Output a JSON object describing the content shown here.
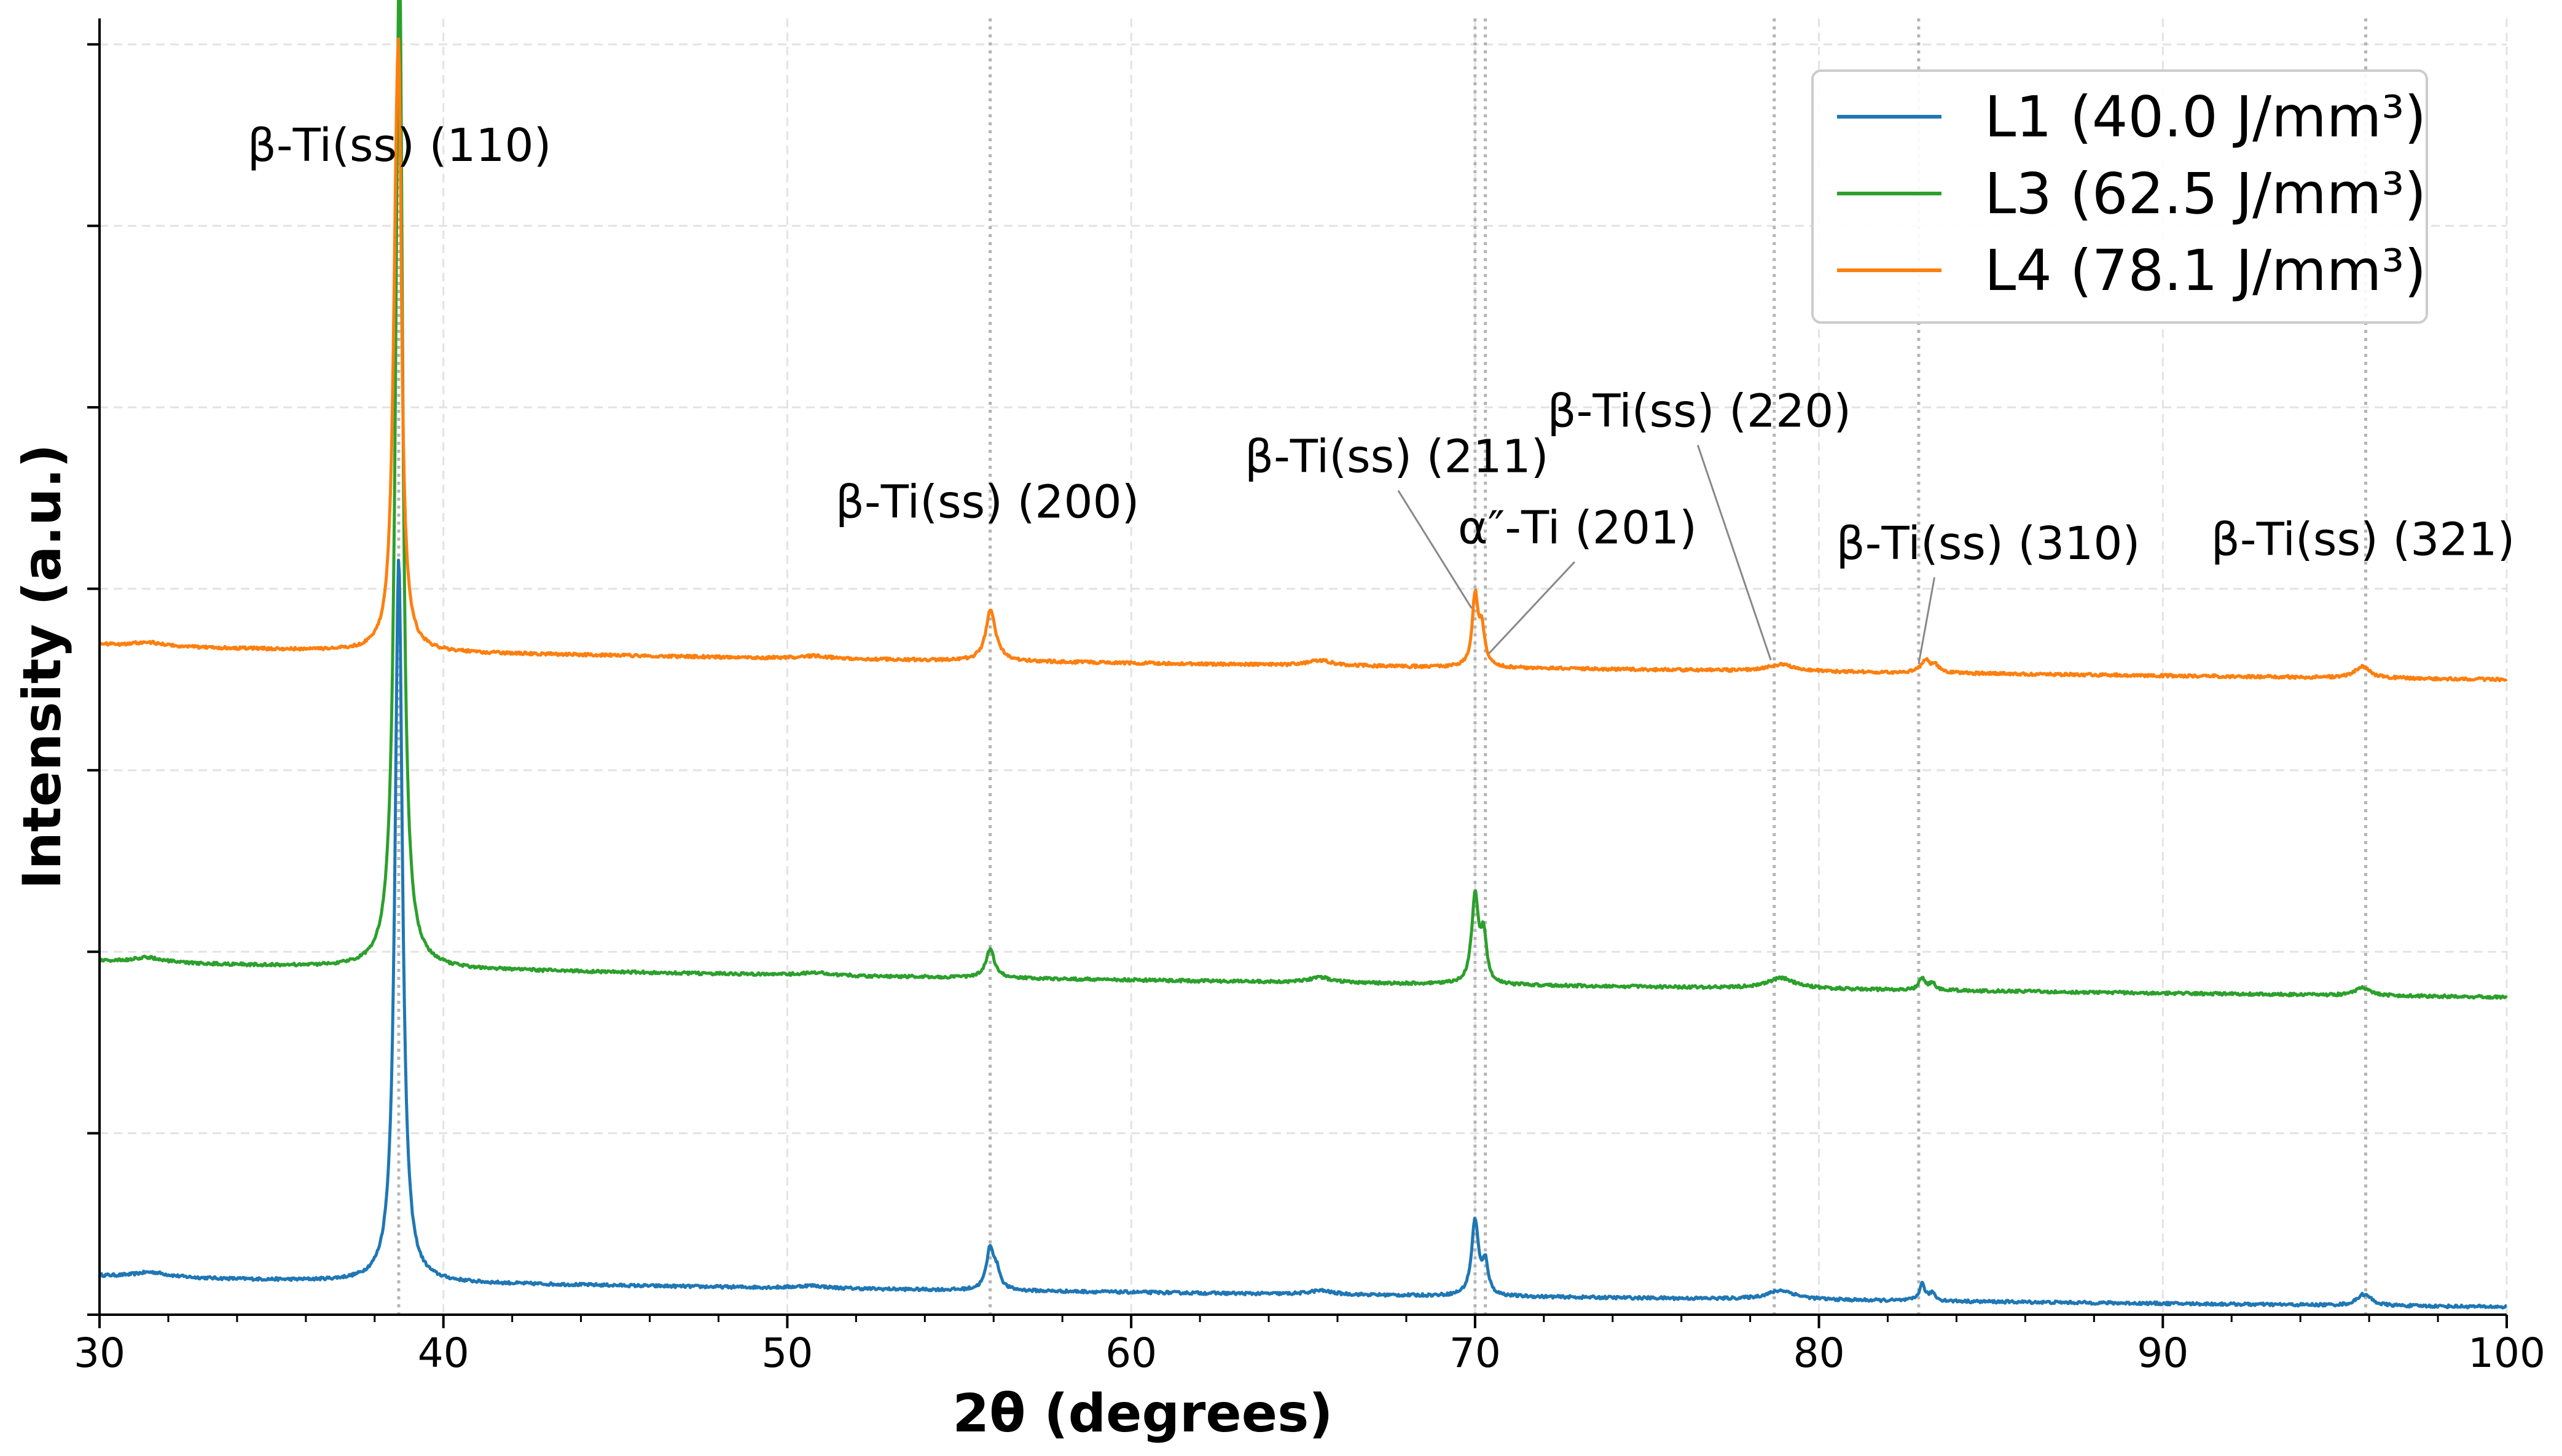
{
  "chart_data": {
    "type": "line",
    "title": "",
    "xlabel": "2θ (degrees)",
    "ylabel": "Intensity (a.u.)",
    "xlim": [
      30,
      100
    ],
    "ylim": [
      0,
      1
    ],
    "x_ticks": [
      "30",
      "40",
      "50",
      "60",
      "70",
      "80",
      "90",
      "100"
    ],
    "y_tick_values": [
      0,
      0.14,
      0.28,
      0.42,
      0.56,
      0.7,
      0.84,
      0.98
    ],
    "grid": true,
    "y_tick_labels_shown": false,
    "legend": {
      "placement": "top-right",
      "entries": [
        {
          "label": "L1 (40.0 J/mm³)",
          "color": "#1f77b4"
        },
        {
          "label": "L3 (62.5 J/mm³)",
          "color": "#2ca02c"
        },
        {
          "label": "L4 (78.1 J/mm³)",
          "color": "#ff7f0e"
        }
      ]
    },
    "reference_lines": [
      38.7,
      55.9,
      70.0,
      70.3,
      78.7,
      82.9,
      95.9
    ],
    "series": [
      {
        "name": "L1 (40.0 J/mm³)",
        "color": "#1f77b4",
        "offset": 0.0,
        "baseline_start": 0.03,
        "baseline_end": 0.006,
        "peaks": [
          [
            38.7,
            0.56,
            0.13
          ],
          [
            55.9,
            0.032,
            0.13
          ],
          [
            56.1,
            0.012,
            0.12
          ],
          [
            70.0,
            0.058,
            0.12
          ],
          [
            70.3,
            0.024,
            0.1
          ],
          [
            78.9,
            0.007,
            0.5
          ],
          [
            65.5,
            0.003,
            0.4
          ],
          [
            83.0,
            0.013,
            0.1
          ],
          [
            83.3,
            0.006,
            0.1
          ],
          [
            95.8,
            0.007,
            0.2
          ],
          [
            96.0,
            0.003,
            0.2
          ],
          [
            31.5,
            0.004,
            0.6
          ],
          [
            50.7,
            0.002,
            0.5
          ]
        ]
      },
      {
        "name": "L3 (62.5 J/mm³)",
        "color": "#2ca02c",
        "offset": 0.245,
        "baseline_start": 0.028,
        "baseline_end": 0.0,
        "peaks": [
          [
            38.7,
            0.62,
            0.13
          ],
          [
            38.75,
            0.2,
            0.08
          ],
          [
            55.9,
            0.022,
            0.15
          ],
          [
            70.0,
            0.067,
            0.12
          ],
          [
            70.25,
            0.035,
            0.1
          ],
          [
            78.9,
            0.008,
            0.5
          ],
          [
            65.5,
            0.004,
            0.4
          ],
          [
            83.0,
            0.01,
            0.1
          ],
          [
            83.3,
            0.006,
            0.1
          ],
          [
            95.8,
            0.006,
            0.25
          ],
          [
            31.4,
            0.004,
            0.5
          ],
          [
            50.8,
            0.002,
            0.5
          ]
        ]
      },
      {
        "name": "L4 (78.1 J/mm³)",
        "color": "#ff7f0e",
        "offset": 0.49,
        "baseline_start": 0.027,
        "baseline_end": 0.0,
        "peaks": [
          [
            38.65,
            0.35,
            0.13
          ],
          [
            38.72,
            0.18,
            0.07
          ],
          [
            55.9,
            0.033,
            0.15
          ],
          [
            56.0,
            0.008,
            0.25
          ],
          [
            70.0,
            0.054,
            0.1
          ],
          [
            70.2,
            0.028,
            0.1
          ],
          [
            78.9,
            0.005,
            0.5
          ],
          [
            65.5,
            0.004,
            0.4
          ],
          [
            83.1,
            0.01,
            0.15
          ],
          [
            83.4,
            0.005,
            0.15
          ],
          [
            95.8,
            0.009,
            0.25
          ],
          [
            31.4,
            0.003,
            0.6
          ],
          [
            50.8,
            0.002,
            0.5
          ]
        ]
      }
    ],
    "annotations": [
      {
        "text": "β-Ti(ss) (110)",
        "x": 34.3,
        "y": 0.89,
        "anchor": "start"
      },
      {
        "text": "β-Ti(ss) (200)",
        "x": 51.4,
        "y": 0.615,
        "anchor": "start"
      },
      {
        "text": "β-Ti(ss) (211)",
        "x": 63.3,
        "y": 0.65,
        "anchor": "start",
        "leader_to": [
          69.9,
          0.545
        ]
      },
      {
        "text": "α″-Ti (201)",
        "x": 69.5,
        "y": 0.595,
        "anchor": "start",
        "leader_to": [
          70.4,
          0.51
        ]
      },
      {
        "text": "β-Ti(ss) (220)",
        "x": 72.1,
        "y": 0.685,
        "anchor": "start",
        "leader_to": [
          78.6,
          0.505
        ]
      },
      {
        "text": "β-Ti(ss) (310)",
        "x": 80.5,
        "y": 0.583,
        "anchor": "start",
        "leader_to": [
          82.9,
          0.502
        ]
      },
      {
        "text": "β-Ti(ss) (321)",
        "x": 91.4,
        "y": 0.586,
        "anchor": "start"
      }
    ]
  }
}
